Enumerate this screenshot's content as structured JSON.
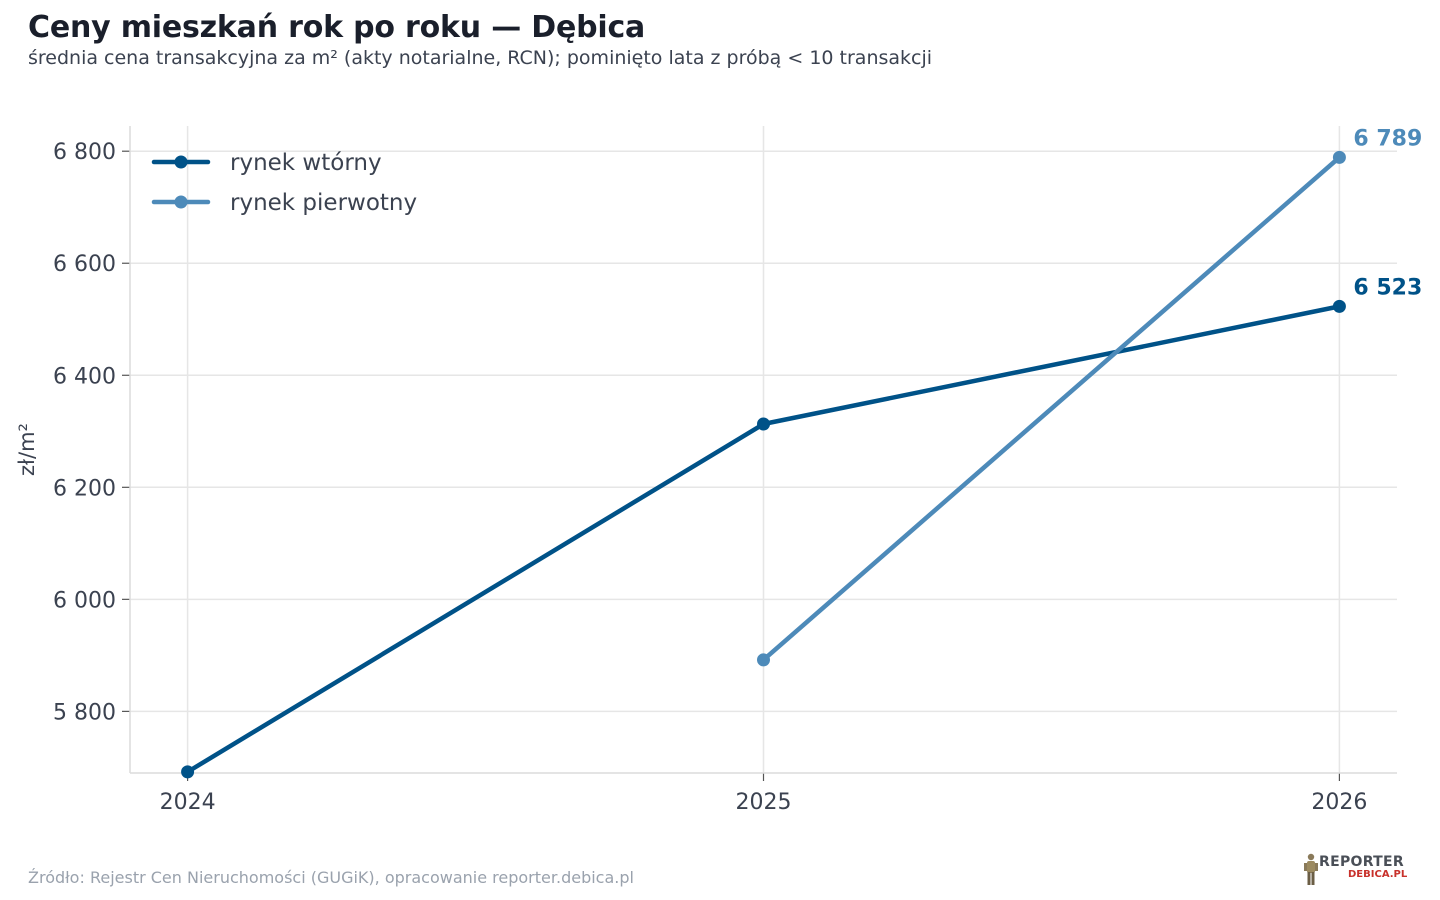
{
  "title": "Ceny mieszkań rok po roku — Dębica",
  "subtitle": "średnia cena transakcyjna za m² (akty notarialne, RCN); pominięto lata z próbą < 10 transakcji",
  "source": "Źródło: Rejestr Cen Nieruchomości (GUGiK), opracowanie reporter.debica.pl",
  "logo": {
    "line1": "REPORTER",
    "line2": "DEBICA.PL"
  },
  "colors": {
    "wtorny": "#005288",
    "pierwotny": "#4d8ab9",
    "grid": "#e6e6e6",
    "text": "#3b4250"
  },
  "chart_data": {
    "type": "line",
    "title": "Ceny mieszkań rok po roku — Dębica",
    "subtitle": "średnia cena transakcyjna za m² (akty notarialne, RCN); pominięto lata z próbą < 10 transakcji",
    "xlabel": "",
    "ylabel": "zł/m²",
    "x": [
      2024,
      2025,
      2026
    ],
    "x_tick_labels": [
      "2024",
      "2025",
      "2026"
    ],
    "xlim": [
      2023.9,
      2026.1
    ],
    "ylim": [
      5690,
      6845
    ],
    "y_ticks": [
      5800,
      6000,
      6200,
      6400,
      6600,
      6800
    ],
    "y_tick_labels": [
      "5 800",
      "6 000",
      "6 200",
      "6 400",
      "6 600",
      "6 800"
    ],
    "grid": true,
    "legend_position": "top-left",
    "series": [
      {
        "name": "rynek wtórny",
        "x": [
          2024,
          2025,
          2026
        ],
        "values": [
          5692,
          6313,
          6523
        ],
        "end_label": "6 523",
        "color": "#005288"
      },
      {
        "name": "rynek pierwotny",
        "x": [
          2025,
          2026
        ],
        "values": [
          5892,
          6789
        ],
        "end_label": "6 789",
        "color": "#4d8ab9"
      }
    ]
  }
}
